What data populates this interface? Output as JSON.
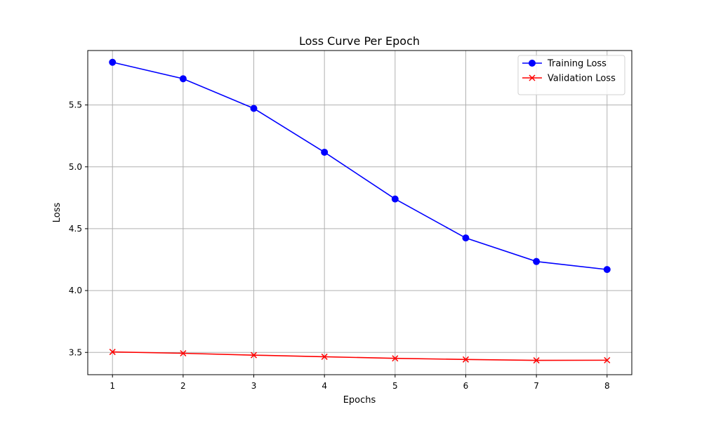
{
  "chart_data": {
    "type": "line",
    "title": "Loss Curve Per Epoch",
    "xlabel": "Epochs",
    "ylabel": "Loss",
    "x": [
      1,
      2,
      3,
      4,
      5,
      6,
      7,
      8
    ],
    "xticks": [
      "1",
      "2",
      "3",
      "4",
      "5",
      "6",
      "7",
      "8"
    ],
    "yticks": [
      "3.5",
      "4.0",
      "4.5",
      "5.0",
      "5.5"
    ],
    "xlim": [
      0.65,
      8.35
    ],
    "ylim": [
      3.32,
      5.94
    ],
    "grid": true,
    "legend_position": "top-right",
    "series": [
      {
        "name": "Training Loss",
        "color": "#0000ff",
        "marker": "circle",
        "values": [
          5.845,
          5.712,
          5.472,
          5.118,
          4.74,
          4.425,
          4.235,
          4.17
        ]
      },
      {
        "name": "Validation Loss",
        "color": "#ff0000",
        "marker": "x",
        "values": [
          3.504,
          3.493,
          3.478,
          3.465,
          3.452,
          3.443,
          3.436,
          3.437
        ]
      }
    ]
  }
}
